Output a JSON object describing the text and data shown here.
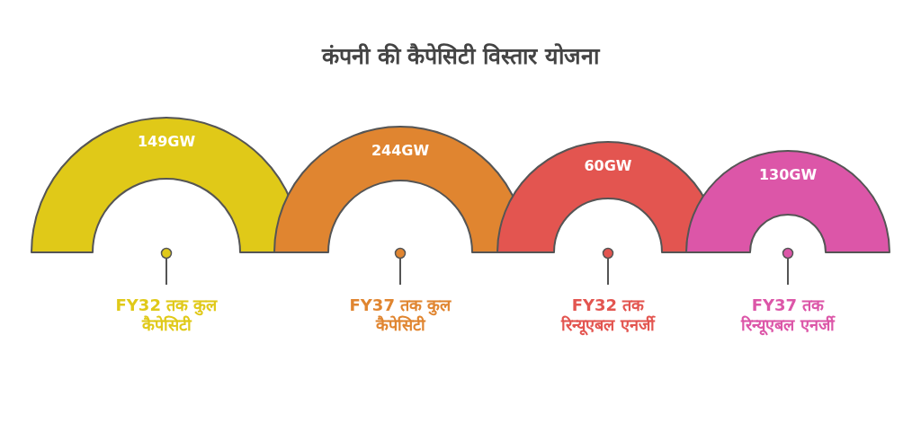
{
  "chart_data": {
    "type": "other",
    "title": "कंपनी की कैपेसिटी विस्तार योजना",
    "categories": [
      "FY32 तक कुल कैपेसिटी",
      "FY37 तक कुल कैपेसिटी",
      "FY32 तक रिन्यूएबल एनर्जी",
      "FY37 तक रिन्यूएबल एनर्जी"
    ],
    "values": [
      149,
      244,
      60,
      130
    ],
    "value_labels": [
      "149GW",
      "244GW",
      "60GW",
      "130GW"
    ],
    "colors": [
      "#e0c918",
      "#e08530",
      "#e35550",
      "#dc56a8"
    ]
  }
}
